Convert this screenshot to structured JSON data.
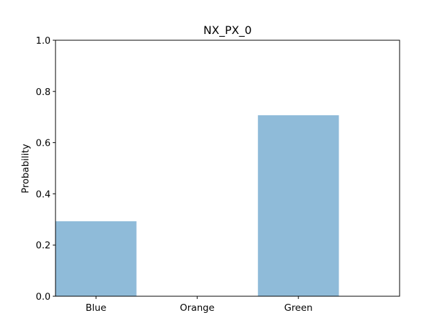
{
  "chart_data": {
    "type": "bar",
    "title": "NX_PX_0",
    "xlabel": "",
    "ylabel": "Probability",
    "categories": [
      "Blue",
      "Orange",
      "Green"
    ],
    "values": [
      0.293,
      0.0,
      0.707
    ],
    "ylim": [
      0,
      1.0
    ],
    "yticks": [
      0.0,
      0.2,
      0.4,
      0.6,
      0.8,
      1.0
    ],
    "ytick_labels": [
      "0.0",
      "0.2",
      "0.4",
      "0.6",
      "0.8",
      "1.0"
    ],
    "bar_color": "#1f77b4",
    "bar_alpha": 0.5,
    "grid": false,
    "legend": false
  }
}
